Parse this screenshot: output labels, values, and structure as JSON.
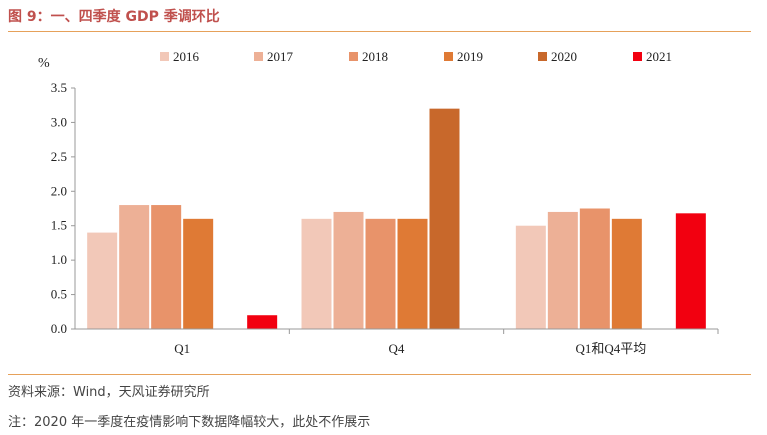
{
  "header": {
    "title": "图 9：一、四季度 GDP 季调环比"
  },
  "footer": {
    "source": "资料来源：Wind，天风证券研究所",
    "note": "注：2020 年一季度在疫情影响下数据降幅较大，此处不作展示"
  },
  "chart_data": {
    "type": "bar",
    "unit_label": "%",
    "categories": [
      "Q1",
      "Q4",
      "Q1和Q4平均"
    ],
    "ylim": [
      0,
      3.5
    ],
    "yticks": [
      "0.0",
      "0.5",
      "1.0",
      "1.5",
      "2.0",
      "2.5",
      "3.0",
      "3.5"
    ],
    "legend_position": "top",
    "series": [
      {
        "name": "2016",
        "color": "#f2c8b8",
        "values": [
          1.4,
          1.6,
          1.5
        ]
      },
      {
        "name": "2017",
        "color": "#edb096",
        "values": [
          1.8,
          1.7,
          1.7
        ]
      },
      {
        "name": "2018",
        "color": "#e8936a",
        "values": [
          1.8,
          1.6,
          1.75
        ]
      },
      {
        "name": "2019",
        "color": "#df7a35",
        "values": [
          1.6,
          1.6,
          1.6
        ]
      },
      {
        "name": "2020",
        "color": "#c8682b",
        "values": [
          null,
          3.2,
          null
        ]
      },
      {
        "name": "2021",
        "color": "#f20010",
        "values": [
          0.2,
          null,
          1.68
        ]
      }
    ]
  }
}
